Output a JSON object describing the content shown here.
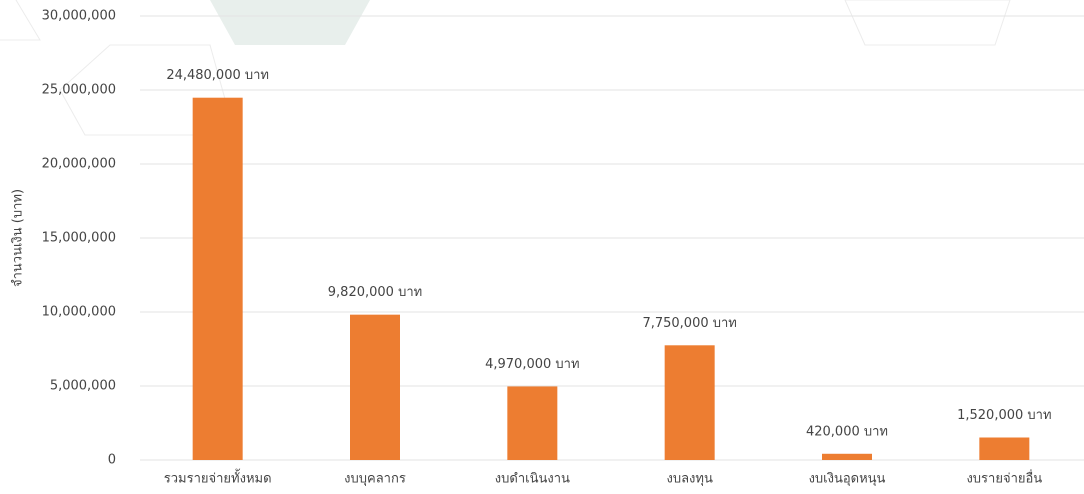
{
  "chart_data": {
    "type": "bar",
    "y_label": "จำนวนเงิน (บาท)",
    "categories": [
      "รวมรายจ่ายทั้งหมด",
      "งบบุคลากร",
      "งบดำเนินงาน",
      "งบลงทุน",
      "งบเงินอุดหนุน",
      "งบรายจ่ายอื่น"
    ],
    "values": [
      24480000,
      9820000,
      4970000,
      7750000,
      420000,
      1520000
    ],
    "value_labels": [
      "24,480,000 บาท",
      "9,820,000 บาท",
      "4,970,000 บาท",
      "7,750,000 บาท",
      "420,000 บาท",
      "1,520,000 บาท"
    ],
    "color": "#ed7d31",
    "ylim": [
      0,
      30000000
    ],
    "yticks": [
      0,
      {
        "value": 5000000,
        "label": "5,000,000"
      },
      {
        "value": 10000000,
        "label": "10,000,000"
      },
      {
        "value": 15000000,
        "label": "15,000,000"
      },
      {
        "value": 20000000,
        "label": "20,000,000"
      },
      {
        "value": 25000000,
        "label": "25,000,000"
      },
      {
        "value": 30000000,
        "label": "30,000,000"
      }
    ],
    "grid": true
  }
}
